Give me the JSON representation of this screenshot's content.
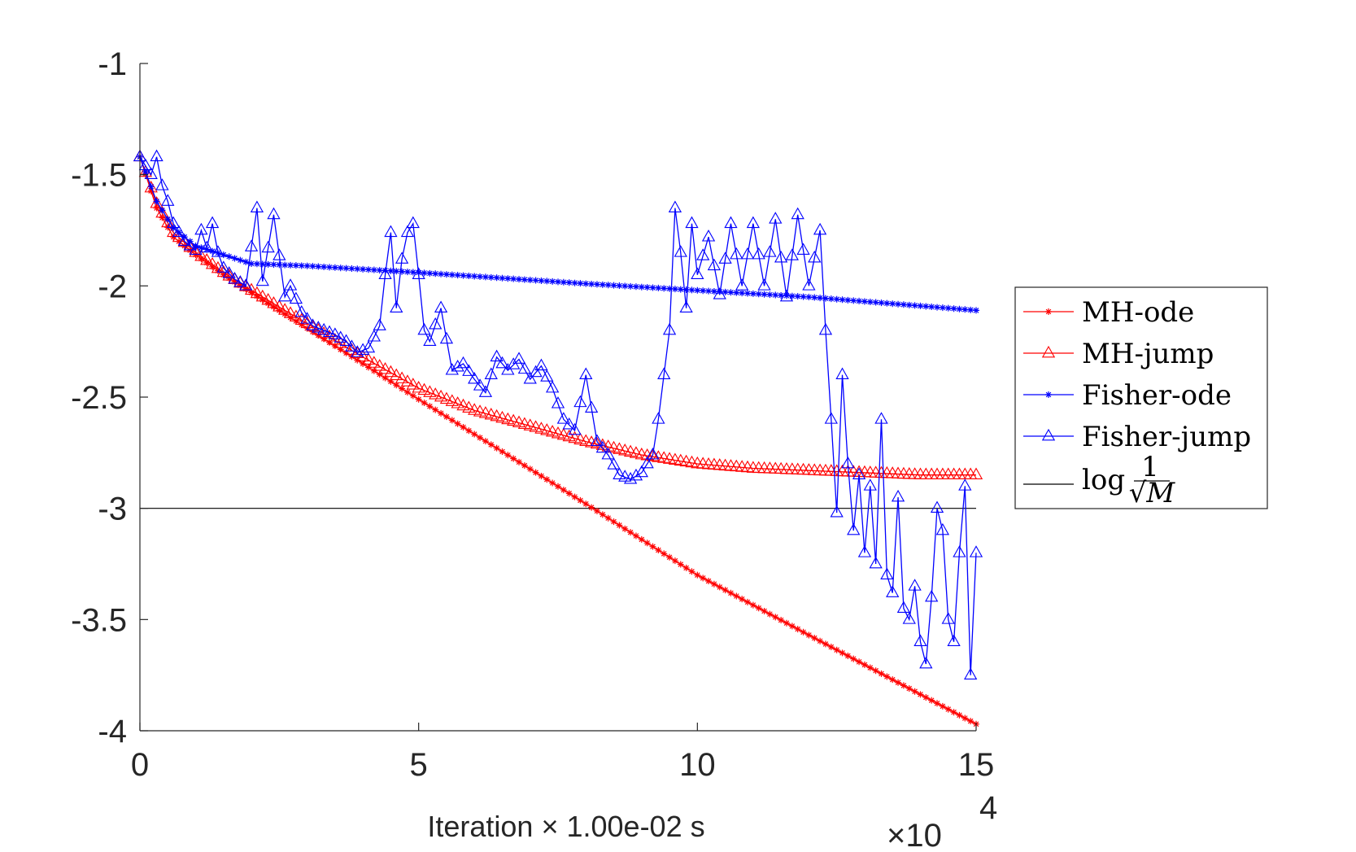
{
  "chart_data": {
    "type": "line",
    "title": "",
    "xlabel": "Iteration × 1.00e-02 s",
    "x_exponent_label": "×10",
    "x_exponent_power": "4",
    "ylabel": "",
    "xlim": [
      0,
      15
    ],
    "ylim": [
      -4,
      -1
    ],
    "x_ticks": [
      0,
      5,
      10,
      15
    ],
    "x_tick_labels": [
      "0",
      "5",
      "10",
      "15"
    ],
    "y_ticks": [
      -1,
      -1.5,
      -2,
      -2.5,
      -3,
      -3.5,
      -4
    ],
    "y_tick_labels": [
      "-1",
      "-1.5",
      "-2",
      "-2.5",
      "-3",
      "-3.5",
      "-4"
    ],
    "grid": false,
    "legend_position": "right",
    "reference_line": {
      "name": "log 1/√M",
      "y": -3
    },
    "legend_log_text": "log",
    "legend_frac_num": "1",
    "legend_frac_den": "√M",
    "colors": {
      "MH": "#ff0000",
      "Fisher": "#0000ff",
      "reference": "#000000"
    },
    "series": [
      {
        "name": "MH-ode",
        "color": "#ff0000",
        "marker": "star",
        "marker_step": 0.1,
        "x": [
          0,
          0.3,
          0.6,
          1.0,
          1.5,
          2.0,
          3.0,
          5.0,
          8.0,
          10.0,
          12.0,
          15.0
        ],
        "y": [
          -1.42,
          -1.65,
          -1.78,
          -1.86,
          -1.95,
          -2.03,
          -2.19,
          -2.51,
          -2.98,
          -3.3,
          -3.57,
          -3.97
        ]
      },
      {
        "name": "MH-jump",
        "color": "#ff0000",
        "marker": "triangle",
        "marker_step": 0.1,
        "x": [
          0,
          0.3,
          0.6,
          1.0,
          1.5,
          2.0,
          3.0,
          4.0,
          5.0,
          6.0,
          7.0,
          8.0,
          9.0,
          10.0,
          11.0,
          12.0,
          13.0,
          14.0,
          15.0
        ],
        "y": [
          -1.42,
          -1.63,
          -1.76,
          -1.85,
          -1.94,
          -2.02,
          -2.17,
          -2.32,
          -2.46,
          -2.56,
          -2.63,
          -2.7,
          -2.76,
          -2.8,
          -2.82,
          -2.83,
          -2.84,
          -2.85,
          -2.85
        ]
      },
      {
        "name": "Fisher-ode",
        "color": "#0000ff",
        "marker": "star",
        "marker_step": 0.1,
        "x": [
          0,
          0.3,
          0.6,
          1.0,
          1.5,
          2.0,
          3.0,
          5.0,
          8.0,
          10.0,
          12.0,
          15.0
        ],
        "y": [
          -1.42,
          -1.62,
          -1.74,
          -1.82,
          -1.86,
          -1.9,
          -1.91,
          -1.94,
          -1.99,
          -2.02,
          -2.05,
          -2.11
        ]
      },
      {
        "name": "Fisher-jump",
        "color": "#0000ff",
        "marker": "triangle",
        "marker_step": 0.1,
        "x": [
          0.0,
          0.2,
          0.3,
          0.4,
          0.5,
          0.6,
          0.8,
          1.0,
          1.1,
          1.2,
          1.3,
          1.4,
          1.5,
          1.7,
          1.9,
          2.1,
          2.2,
          2.4,
          2.6,
          2.7,
          2.9,
          3.1,
          3.3,
          3.5,
          3.7,
          3.9,
          4.1,
          4.3,
          4.4,
          4.5,
          4.6,
          4.7,
          4.8,
          4.9,
          5.0,
          5.1,
          5.2,
          5.4,
          5.6,
          5.8,
          6.0,
          6.2,
          6.4,
          6.6,
          6.8,
          7.0,
          7.2,
          7.4,
          7.6,
          7.8,
          8.0,
          8.1,
          8.2,
          8.4,
          8.6,
          8.8,
          9.0,
          9.2,
          9.3,
          9.4,
          9.5,
          9.6,
          9.7,
          9.8,
          9.9,
          10.0,
          10.2,
          10.4,
          10.6,
          10.8,
          11.0,
          11.2,
          11.4,
          11.6,
          11.8,
          12.0,
          12.2,
          12.3,
          12.4,
          12.5,
          12.6,
          12.7,
          12.8,
          12.9,
          13.0,
          13.1,
          13.2,
          13.3,
          13.4,
          13.5,
          13.6,
          13.7,
          13.8,
          13.9,
          14.0,
          14.1,
          14.2,
          14.3,
          14.4,
          14.5,
          14.6,
          14.7,
          14.8,
          14.9,
          15.0
        ],
        "y": [
          -1.42,
          -1.5,
          -1.42,
          -1.55,
          -1.62,
          -1.72,
          -1.8,
          -1.84,
          -1.75,
          -1.83,
          -1.72,
          -1.85,
          -1.92,
          -1.97,
          -2.0,
          -1.65,
          -1.98,
          -1.68,
          -2.05,
          -2.0,
          -2.12,
          -2.18,
          -2.2,
          -2.22,
          -2.25,
          -2.3,
          -2.28,
          -2.18,
          -1.95,
          -1.76,
          -2.1,
          -1.88,
          -1.76,
          -1.72,
          -1.95,
          -2.2,
          -2.25,
          -2.1,
          -2.38,
          -2.35,
          -2.42,
          -2.48,
          -2.32,
          -2.38,
          -2.33,
          -2.42,
          -2.36,
          -2.46,
          -2.6,
          -2.65,
          -2.4,
          -2.55,
          -2.7,
          -2.76,
          -2.85,
          -2.87,
          -2.84,
          -2.76,
          -2.6,
          -2.4,
          -2.2,
          -1.65,
          -1.85,
          -2.1,
          -1.72,
          -1.95,
          -1.78,
          -2.04,
          -1.72,
          -2.0,
          -1.72,
          -2.0,
          -1.7,
          -2.05,
          -1.68,
          -2.0,
          -1.75,
          -2.2,
          -2.6,
          -3.02,
          -2.4,
          -2.8,
          -3.1,
          -2.85,
          -3.2,
          -2.9,
          -3.25,
          -2.6,
          -3.3,
          -3.38,
          -2.95,
          -3.45,
          -3.5,
          -3.35,
          -3.6,
          -3.7,
          -3.4,
          -3.0,
          -3.1,
          -3.5,
          -3.6,
          -3.2,
          -2.9,
          -3.75,
          -3.2
        ]
      }
    ],
    "reference_series": {
      "name": "log 1/√M",
      "color": "#000000",
      "x": [
        0,
        15
      ],
      "y": [
        -3,
        -3
      ]
    }
  }
}
